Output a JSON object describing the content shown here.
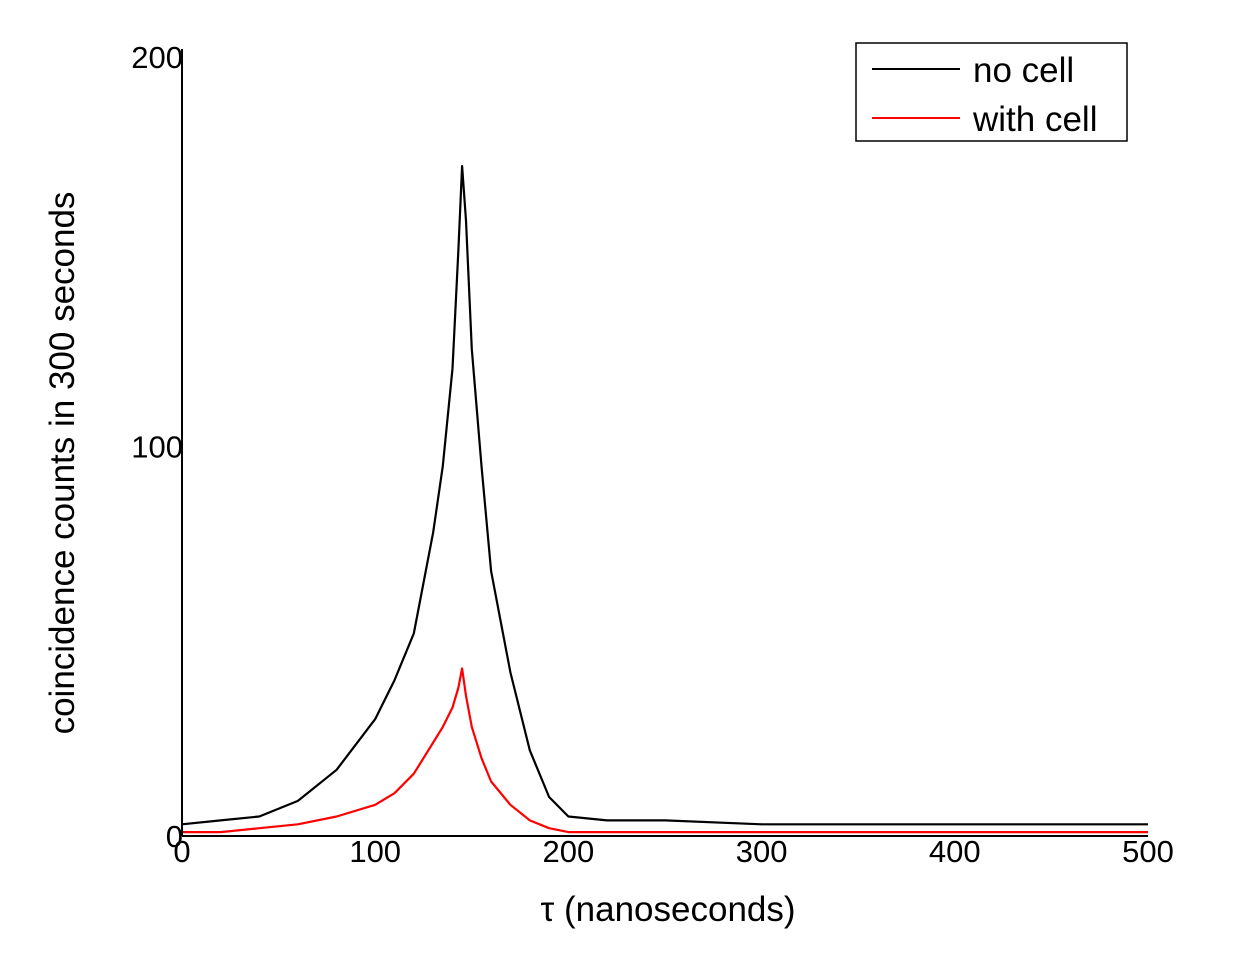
{
  "chart_data": {
    "type": "line",
    "title": "",
    "xlabel": "τ (nanoseconds)",
    "ylabel": "coincidence counts in 300 seconds",
    "xlim": [
      0,
      500
    ],
    "ylim": [
      0,
      200
    ],
    "x_ticks": [
      "0",
      "100",
      "200",
      "300",
      "400",
      "500"
    ],
    "y_ticks": [
      "0",
      "100",
      "200"
    ],
    "grid": false,
    "legend": {
      "position": "top-right"
    },
    "colors": {
      "no_cell": "#000000",
      "with_cell": "#ff0000"
    },
    "series": [
      {
        "name": "no cell",
        "color": "#000000",
        "x": [
          0,
          20,
          40,
          60,
          80,
          100,
          110,
          120,
          130,
          135,
          140,
          143,
          145,
          147,
          150,
          155,
          160,
          170,
          180,
          190,
          200,
          220,
          250,
          300,
          350,
          400,
          450,
          500
        ],
        "values": [
          3,
          4,
          5,
          9,
          17,
          30,
          40,
          52,
          78,
          95,
          120,
          150,
          172,
          158,
          125,
          95,
          68,
          42,
          22,
          10,
          5,
          4,
          4,
          3,
          3,
          3,
          3,
          3
        ]
      },
      {
        "name": "with cell",
        "color": "#ff0000",
        "x": [
          0,
          20,
          40,
          60,
          80,
          100,
          110,
          120,
          130,
          135,
          140,
          143,
          145,
          147,
          150,
          155,
          160,
          170,
          180,
          190,
          200,
          220,
          250,
          300,
          350,
          400,
          450,
          500
        ],
        "values": [
          1,
          1,
          2,
          3,
          5,
          8,
          11,
          16,
          24,
          28,
          33,
          38,
          43,
          36,
          28,
          20,
          14,
          8,
          4,
          2,
          1,
          1,
          1,
          1,
          1,
          1,
          1,
          1
        ]
      }
    ]
  }
}
